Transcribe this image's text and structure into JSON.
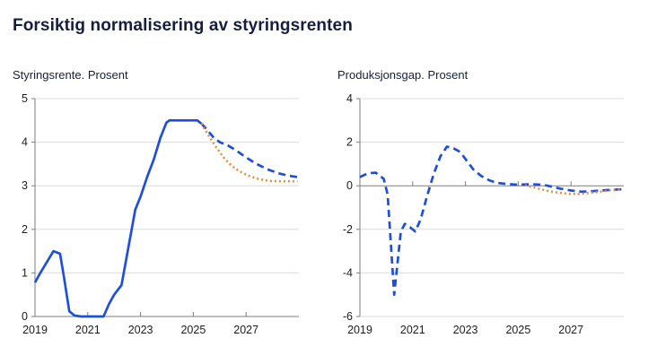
{
  "header": {
    "title": "Forsiktig normalisering av styringsrenten"
  },
  "colors": {
    "navy": "#151f3d",
    "blue": "#1e4fdc",
    "orange": "#ea8a3c",
    "grid": "#dcdcdc",
    "axis": "#7d7d7d",
    "tick_text": "#1c1c1c"
  },
  "chart_data": [
    {
      "type": "line",
      "title": "Styringsrente. Prosent",
      "xlabel": "",
      "ylabel": "",
      "xlim": [
        2019,
        2029
      ],
      "ylim": [
        0,
        5
      ],
      "yticks": [
        0,
        1,
        2,
        3,
        4,
        5
      ],
      "xticks": [
        2019,
        2021,
        2023,
        2025,
        2027
      ],
      "grid": "horizontal",
      "legend": "none",
      "series": [
        {
          "name": "blue-solid",
          "style": "solid",
          "color": "blue",
          "points": [
            [
              2019.0,
              0.78
            ],
            [
              2019.2,
              1.0
            ],
            [
              2019.45,
              1.25
            ],
            [
              2019.7,
              1.5
            ],
            [
              2019.95,
              1.44
            ],
            [
              2020.1,
              0.9
            ],
            [
              2020.3,
              0.12
            ],
            [
              2020.5,
              0.02
            ],
            [
              2020.75,
              0.0
            ],
            [
              2021.6,
              0.0
            ],
            [
              2021.8,
              0.28
            ],
            [
              2022.0,
              0.5
            ],
            [
              2022.28,
              0.72
            ],
            [
              2022.8,
              2.45
            ],
            [
              2023.0,
              2.75
            ],
            [
              2023.25,
              3.2
            ],
            [
              2023.5,
              3.6
            ],
            [
              2023.75,
              4.1
            ],
            [
              2023.98,
              4.45
            ],
            [
              2024.1,
              4.5
            ],
            [
              2025.15,
              4.5
            ],
            [
              2025.3,
              4.43
            ]
          ]
        },
        {
          "name": "blue-dashed",
          "style": "dashed",
          "color": "blue",
          "points": [
            [
              2025.3,
              4.43
            ],
            [
              2025.5,
              4.3
            ],
            [
              2025.75,
              4.12
            ],
            [
              2026.0,
              4.0
            ],
            [
              2026.3,
              3.93
            ],
            [
              2026.6,
              3.82
            ],
            [
              2027.0,
              3.65
            ],
            [
              2027.4,
              3.5
            ],
            [
              2027.8,
              3.38
            ],
            [
              2028.2,
              3.29
            ],
            [
              2028.6,
              3.23
            ],
            [
              2028.95,
              3.2
            ]
          ]
        },
        {
          "name": "orange-dotted",
          "style": "dotted",
          "color": "orange",
          "points": [
            [
              2025.3,
              4.43
            ],
            [
              2025.55,
              4.18
            ],
            [
              2025.85,
              3.9
            ],
            [
              2026.15,
              3.65
            ],
            [
              2026.45,
              3.46
            ],
            [
              2026.75,
              3.33
            ],
            [
              2027.1,
              3.23
            ],
            [
              2027.5,
              3.15
            ],
            [
              2027.9,
              3.11
            ],
            [
              2028.4,
              3.1
            ],
            [
              2028.95,
              3.1
            ]
          ]
        }
      ]
    },
    {
      "type": "line",
      "title": "Produksjonsgap. Prosent",
      "xlabel": "",
      "ylabel": "",
      "xlim": [
        2019,
        2029
      ],
      "ylim": [
        -6,
        4
      ],
      "yticks": [
        -6,
        -4,
        -2,
        0,
        2,
        4
      ],
      "xticks": [
        2019,
        2021,
        2023,
        2025,
        2027
      ],
      "grid": "horizontal",
      "legend": "none",
      "series": [
        {
          "name": "blue-dashed",
          "style": "dashed",
          "color": "blue",
          "points": [
            [
              2019.0,
              0.4
            ],
            [
              2019.3,
              0.57
            ],
            [
              2019.6,
              0.6
            ],
            [
              2019.9,
              0.32
            ],
            [
              2020.05,
              -0.4
            ],
            [
              2020.3,
              -5.0
            ],
            [
              2020.55,
              -2.1
            ],
            [
              2020.7,
              -1.75
            ],
            [
              2020.9,
              -1.9
            ],
            [
              2021.1,
              -2.1
            ],
            [
              2021.3,
              -1.55
            ],
            [
              2021.55,
              -0.45
            ],
            [
              2021.8,
              0.55
            ],
            [
              2022.05,
              1.35
            ],
            [
              2022.3,
              1.8
            ],
            [
              2022.55,
              1.72
            ],
            [
              2022.8,
              1.55
            ],
            [
              2023.05,
              1.15
            ],
            [
              2023.3,
              0.75
            ],
            [
              2023.6,
              0.45
            ],
            [
              2023.9,
              0.25
            ],
            [
              2024.2,
              0.13
            ],
            [
              2024.6,
              0.08
            ],
            [
              2025.0,
              0.05
            ],
            [
              2025.5,
              0.07
            ],
            [
              2025.9,
              0.05
            ],
            [
              2026.2,
              -0.02
            ],
            [
              2026.6,
              -0.13
            ],
            [
              2027.0,
              -0.22
            ],
            [
              2027.4,
              -0.27
            ],
            [
              2027.8,
              -0.25
            ],
            [
              2028.3,
              -0.2
            ],
            [
              2028.95,
              -0.16
            ]
          ]
        },
        {
          "name": "orange-dotted",
          "style": "dotted",
          "color": "orange",
          "points": [
            [
              2025.25,
              0.02
            ],
            [
              2025.6,
              -0.08
            ],
            [
              2026.0,
              -0.2
            ],
            [
              2026.4,
              -0.3
            ],
            [
              2026.9,
              -0.37
            ],
            [
              2027.3,
              -0.38
            ],
            [
              2027.7,
              -0.33
            ],
            [
              2028.1,
              -0.27
            ],
            [
              2028.5,
              -0.21
            ],
            [
              2028.95,
              -0.16
            ]
          ]
        }
      ]
    }
  ]
}
